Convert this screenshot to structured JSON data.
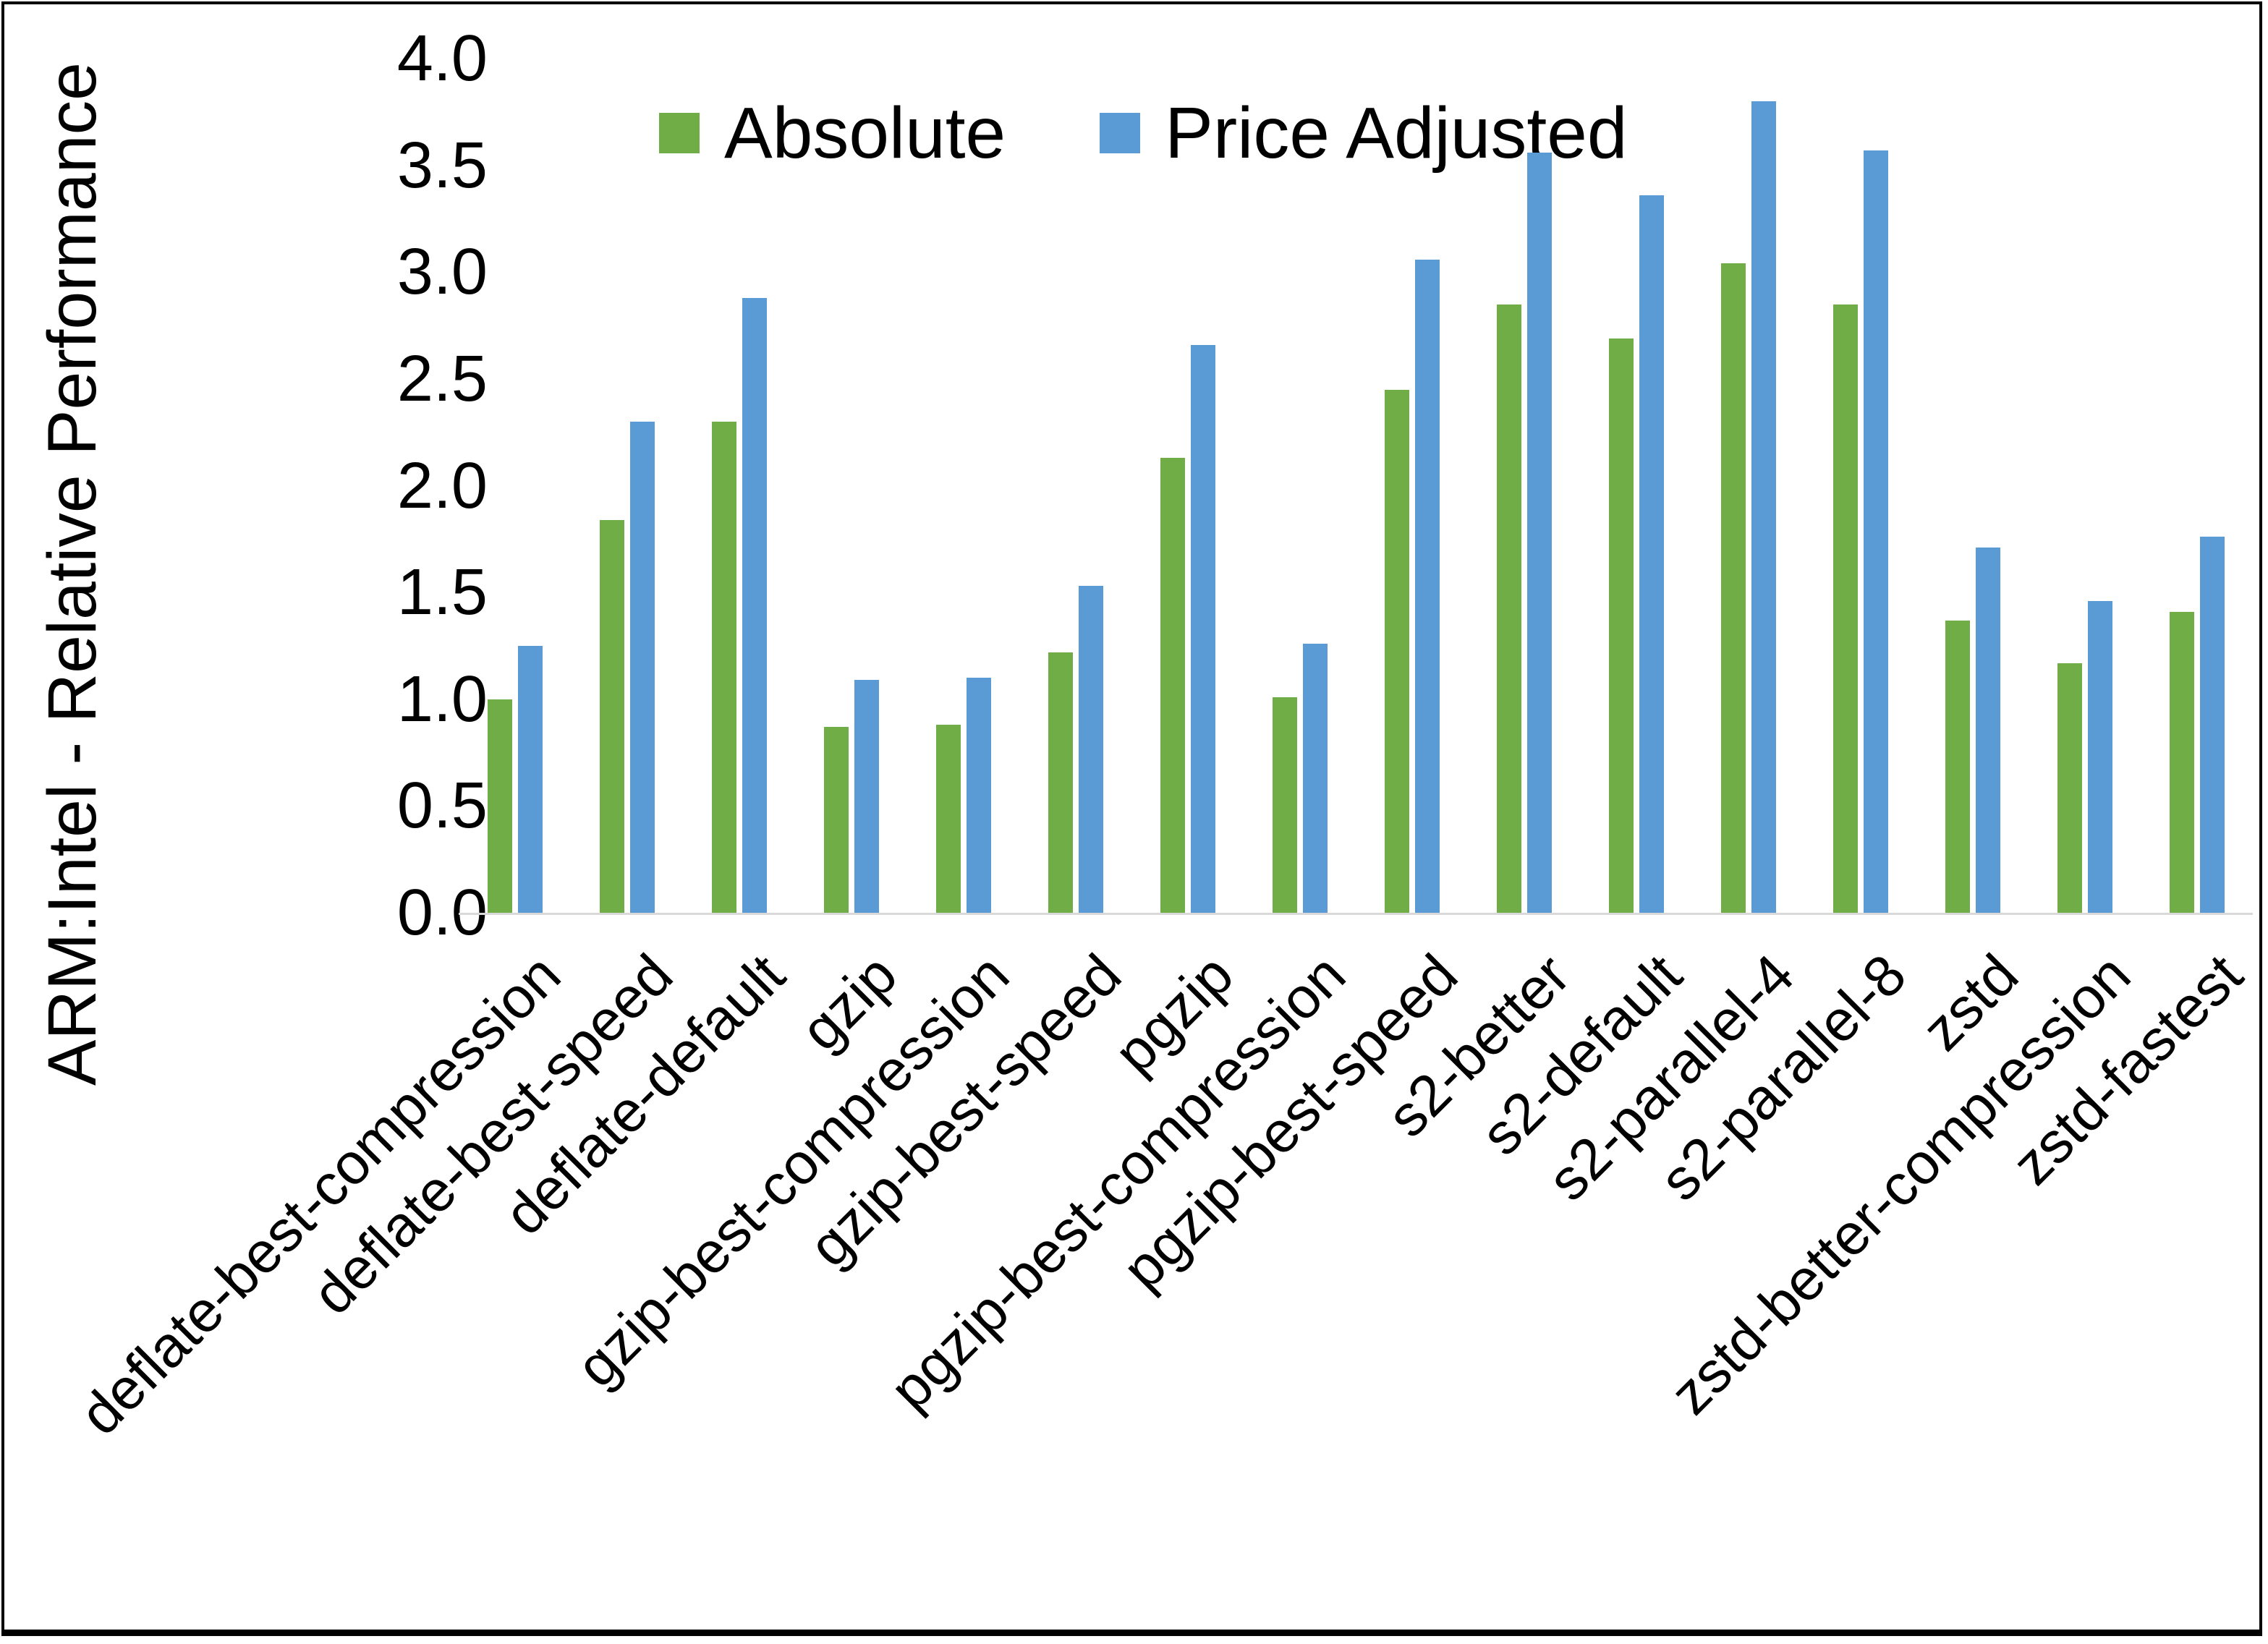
{
  "chart_data": {
    "type": "bar",
    "title": "",
    "xlabel": "",
    "ylabel": "ARM:Intel - Relative Performance",
    "ylim": [
      0.0,
      4.0
    ],
    "ytick_step": 0.5,
    "ytick_labels": [
      "0.0",
      "0.5",
      "1.0",
      "1.5",
      "2.0",
      "2.5",
      "3.0",
      "3.5",
      "4.0"
    ],
    "grid": false,
    "legend_position": "top-center",
    "axis_line_color": "#d9d9d9",
    "categories": [
      "deflate-best-compression",
      "deflate-best-speed",
      "deflate-default",
      "gzip",
      "gzip-best-compression",
      "gzip-best-speed",
      "pgzip",
      "pgzip-best-compression",
      "pgzip-best-speed",
      "s2-better",
      "s2-default",
      "s2-parallel-4",
      "s2-parallel-8",
      "zstd",
      "zstd-better-compression",
      "zstd-fastest"
    ],
    "series": [
      {
        "name": "Absolute",
        "color": "#70AD47",
        "values": [
          1.0,
          1.84,
          2.3,
          0.87,
          0.88,
          1.22,
          2.13,
          1.01,
          2.45,
          2.85,
          2.69,
          3.04,
          2.85,
          1.37,
          1.17,
          1.41
        ]
      },
      {
        "name": "Price Adjusted",
        "color": "#5B9BD5",
        "values": [
          1.25,
          2.3,
          2.88,
          1.09,
          1.1,
          1.53,
          2.66,
          1.26,
          3.06,
          3.56,
          3.36,
          3.8,
          3.57,
          1.71,
          1.46,
          1.76
        ]
      }
    ]
  }
}
